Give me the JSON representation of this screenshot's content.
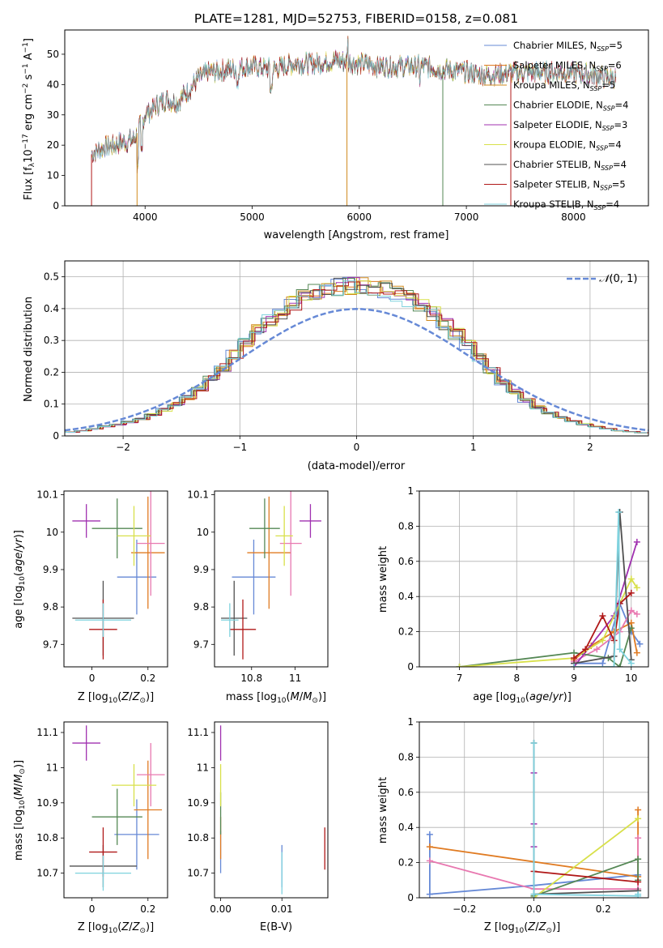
{
  "figure": {
    "title": "PLATE=1281, MJD=52753, FIBERID=0158, z=0.081",
    "series_colors": [
      "#6689d6",
      "#e07b22",
      "#d08a1e",
      "#558855",
      "#a030b0",
      "#d8e04a",
      "#505050",
      "#b01818",
      "#7fd2de"
    ]
  },
  "chart_data": [
    {
      "id": "spectrum",
      "type": "line",
      "xlabel": "wavelength [Angstrom, rest frame]",
      "ylabel": "Flux [f_λ10^-17 erg cm^-2 s^-1 A^-1]",
      "xlim": [
        3250,
        8700
      ],
      "ylim": [
        0,
        58
      ],
      "xticks": [
        4000,
        5000,
        6000,
        7000,
        8000
      ],
      "yticks": [
        0,
        10,
        20,
        30,
        40,
        50
      ],
      "grid": false,
      "legend_position": "upper right",
      "series": [
        {
          "name": "Chabrier MILES, N_SSP=5",
          "color": "#6689d6"
        },
        {
          "name": "Salpeter MILES, N_SSP=6",
          "color": "#e07b22"
        },
        {
          "name": "Kroupa MILES, N_SSP=5",
          "color": "#d08a1e"
        },
        {
          "name": "Chabrier ELODIE, N_SSP=4",
          "color": "#558855"
        },
        {
          "name": "Salpeter ELODIE, N_SSP=3",
          "color": "#a030b0"
        },
        {
          "name": "Kroupa ELODIE, N_SSP=4",
          "color": "#d8e04a"
        },
        {
          "name": "Chabrier STELIB, N_SSP=4",
          "color": "#505050"
        },
        {
          "name": "Salpeter STELIB, N_SSP=5",
          "color": "#b01818"
        },
        {
          "name": "Kroupa STELIB, N_SSP=4",
          "color": "#7fd2de"
        }
      ],
      "continuum": {
        "x": [
          3500,
          3600,
          3700,
          3800,
          3900,
          4000,
          4100,
          4200,
          4300,
          4400,
          4500,
          4600,
          4800,
          5000,
          5200,
          5400,
          5600,
          5800,
          6000,
          6200,
          6400,
          6600,
          6800,
          7000,
          7200,
          7400,
          7600,
          7800,
          8000,
          8200,
          8400
        ],
        "y": [
          17,
          19,
          20,
          21,
          22,
          30,
          33,
          35,
          34,
          38,
          42,
          44,
          45,
          46,
          45,
          47,
          47,
          48,
          47,
          46,
          46,
          46,
          45,
          44,
          43,
          44,
          44,
          44,
          44,
          43,
          42
        ]
      }
    },
    {
      "id": "residuals",
      "type": "bar",
      "xlabel": "(data-model)/error",
      "ylabel": "Normed distribution",
      "xlim": [
        -2.5,
        2.5
      ],
      "ylim": [
        0,
        0.55
      ],
      "xticks": [
        -2,
        -1,
        0,
        1,
        2
      ],
      "xticklabels": [
        "−2",
        "−1",
        "0",
        "1",
        "2"
      ],
      "yticks": [
        0.0,
        0.1,
        0.2,
        0.3,
        0.4,
        0.5
      ],
      "grid": true,
      "legend_position": "upper right",
      "reference_curve": {
        "name": "N(0,1)",
        "color": "#6689d6"
      },
      "bin_width": 0.1,
      "bin_centers": [
        -2.45,
        -2.35,
        -2.25,
        -2.15,
        -2.05,
        -1.95,
        -1.85,
        -1.75,
        -1.65,
        -1.55,
        -1.45,
        -1.35,
        -1.25,
        -1.15,
        -1.05,
        -0.95,
        -0.85,
        -0.75,
        -0.65,
        -0.55,
        -0.45,
        -0.35,
        -0.25,
        -0.15,
        -0.05,
        0.05,
        0.15,
        0.25,
        0.35,
        0.45,
        0.55,
        0.65,
        0.75,
        0.85,
        0.95,
        1.05,
        1.15,
        1.25,
        1.35,
        1.45,
        1.55,
        1.65,
        1.75,
        1.85,
        1.95,
        2.05,
        2.15,
        2.25,
        2.35,
        2.45
      ],
      "histogram": [
        0.012,
        0.016,
        0.022,
        0.03,
        0.036,
        0.044,
        0.054,
        0.066,
        0.082,
        0.1,
        0.12,
        0.148,
        0.18,
        0.215,
        0.255,
        0.295,
        0.33,
        0.36,
        0.39,
        0.415,
        0.44,
        0.455,
        0.462,
        0.468,
        0.47,
        0.47,
        0.466,
        0.46,
        0.448,
        0.432,
        0.41,
        0.385,
        0.355,
        0.32,
        0.285,
        0.245,
        0.205,
        0.17,
        0.14,
        0.112,
        0.09,
        0.072,
        0.058,
        0.046,
        0.037,
        0.029,
        0.022,
        0.017,
        0.013,
        0.01
      ],
      "series_offsets": [
        -0.02,
        0.01,
        0.0,
        -0.015,
        0.025,
        0.02,
        0.005,
        0.03,
        -0.01
      ]
    },
    {
      "id": "age-vs-Z",
      "type": "scatter",
      "xlabel": "Z [log10(Z/Z⊙)]",
      "ylabel": "age [log10(age/yr)]",
      "xlim": [
        -0.1,
        0.27
      ],
      "ylim": [
        9.64,
        10.11
      ],
      "xticks": [
        0.0,
        0.2
      ],
      "yticks": [
        9.7,
        9.8,
        9.9,
        10.0,
        10.1
      ],
      "points": [
        {
          "x": 0.16,
          "y": 9.88,
          "xerr": 0.07,
          "yerr": 0.1,
          "color": "#6689d6"
        },
        {
          "x": 0.2,
          "y": 9.945,
          "xerr": 0.06,
          "yerr": 0.15,
          "color": "#e07b22"
        },
        {
          "x": 0.21,
          "y": 9.97,
          "xerr": 0.05,
          "yerr": 0.14,
          "color": "#e878b0"
        },
        {
          "x": 0.09,
          "y": 10.01,
          "xerr": 0.09,
          "yerr": 0.08,
          "color": "#558855"
        },
        {
          "x": -0.02,
          "y": 10.03,
          "xerr": 0.05,
          "yerr": 0.045,
          "color": "#a030b0"
        },
        {
          "x": 0.15,
          "y": 9.99,
          "xerr": 0.06,
          "yerr": 0.08,
          "color": "#d8e04a"
        },
        {
          "x": 0.04,
          "y": 9.77,
          "xerr": 0.11,
          "yerr": 0.1,
          "color": "#505050"
        },
        {
          "x": 0.04,
          "y": 9.74,
          "xerr": 0.05,
          "yerr": 0.08,
          "color": "#b01818"
        },
        {
          "x": 0.04,
          "y": 9.765,
          "xerr": 0.1,
          "yerr": 0.045,
          "color": "#7fd2de"
        }
      ]
    },
    {
      "id": "age-vs-mass",
      "type": "scatter",
      "xlabel": "mass [log10(M/M⊙)]",
      "ylabel": "",
      "xlim": [
        10.63,
        11.15
      ],
      "ylim": [
        9.64,
        10.11
      ],
      "xticks": [
        10.8,
        11.0
      ],
      "yticks": [
        9.7,
        9.8,
        9.9,
        10.0,
        10.1
      ],
      "points": [
        {
          "x": 10.81,
          "y": 9.88,
          "xerr": 0.1,
          "yerr": 0.1,
          "color": "#6689d6"
        },
        {
          "x": 10.88,
          "y": 9.945,
          "xerr": 0.1,
          "yerr": 0.15,
          "color": "#e07b22"
        },
        {
          "x": 10.98,
          "y": 9.97,
          "xerr": 0.05,
          "yerr": 0.14,
          "color": "#e878b0"
        },
        {
          "x": 10.86,
          "y": 10.01,
          "xerr": 0.07,
          "yerr": 0.08,
          "color": "#558855"
        },
        {
          "x": 11.07,
          "y": 10.03,
          "xerr": 0.05,
          "yerr": 0.045,
          "color": "#a030b0"
        },
        {
          "x": 10.95,
          "y": 9.99,
          "xerr": 0.04,
          "yerr": 0.08,
          "color": "#d8e04a"
        },
        {
          "x": 10.72,
          "y": 9.77,
          "xerr": 0.06,
          "yerr": 0.1,
          "color": "#505050"
        },
        {
          "x": 10.76,
          "y": 9.74,
          "xerr": 0.06,
          "yerr": 0.08,
          "color": "#b01818"
        },
        {
          "x": 10.7,
          "y": 9.765,
          "xerr": 0.04,
          "yerr": 0.045,
          "color": "#7fd2de"
        }
      ]
    },
    {
      "id": "weight-vs-age",
      "type": "line",
      "xlabel": "age [log10(age/yr)]",
      "ylabel": "mass weight",
      "xlim": [
        6.3,
        10.3
      ],
      "ylim": [
        0,
        1
      ],
      "xticks": [
        7,
        8,
        9,
        10
      ],
      "yticks": [
        0.0,
        0.2,
        0.4,
        0.6,
        0.8,
        1.0
      ],
      "grid": true,
      "series": [
        {
          "color": "#6689d6",
          "x": [
            9.0,
            9.5,
            9.8,
            10.0,
            10.15
          ],
          "y": [
            0.02,
            0.02,
            0.36,
            0.2,
            0.13
          ]
        },
        {
          "color": "#e07b22",
          "x": [
            9.0,
            9.3,
            9.7,
            10.0,
            10.1
          ],
          "y": [
            0.04,
            0.12,
            0.2,
            0.25,
            0.08
          ]
        },
        {
          "color": "#e878b0",
          "x": [
            9.0,
            9.4,
            9.8,
            10.0,
            10.1
          ],
          "y": [
            0.03,
            0.1,
            0.2,
            0.32,
            0.3
          ]
        },
        {
          "color": "#558855",
          "x": [
            7.0,
            9.0,
            9.6,
            9.8,
            10.0
          ],
          "y": [
            0.0,
            0.08,
            0.05,
            0.0,
            0.22
          ]
        },
        {
          "color": "#a030b0",
          "x": [
            9.0,
            9.7,
            10.1
          ],
          "y": [
            0.0,
            0.29,
            0.71
          ]
        },
        {
          "color": "#d8e04a",
          "x": [
            7.0,
            9.0,
            9.5,
            10.0,
            10.1
          ],
          "y": [
            0.0,
            0.05,
            0.15,
            0.5,
            0.45
          ]
        },
        {
          "color": "#505050",
          "x": [
            9.0,
            9.7,
            9.8,
            10.0
          ],
          "y": [
            0.02,
            0.06,
            0.88,
            0.04
          ]
        },
        {
          "color": "#b01818",
          "x": [
            9.0,
            9.2,
            9.5,
            9.7,
            9.8,
            10.0
          ],
          "y": [
            0.05,
            0.1,
            0.29,
            0.15,
            0.36,
            0.42
          ]
        },
        {
          "color": "#7fd2de",
          "x": [
            9.0,
            9.7,
            9.78,
            9.8,
            10.0
          ],
          "y": [
            0.0,
            0.0,
            0.88,
            0.1,
            0.02
          ]
        }
      ]
    },
    {
      "id": "mass-vs-Z",
      "type": "scatter",
      "xlabel": "Z [log10(Z/Z⊙)]",
      "ylabel": "mass [log10(M/M⊙)]",
      "xlim": [
        -0.1,
        0.27
      ],
      "ylim": [
        10.63,
        11.13
      ],
      "xticks": [
        0.0,
        0.2
      ],
      "yticks": [
        10.7,
        10.8,
        10.9,
        11.0,
        11.1
      ],
      "points": [
        {
          "x": 0.16,
          "y": 10.81,
          "xerr": 0.08,
          "yerr": 0.1,
          "color": "#6689d6"
        },
        {
          "x": 0.2,
          "y": 10.88,
          "xerr": 0.05,
          "yerr": 0.14,
          "color": "#e07b22"
        },
        {
          "x": 0.21,
          "y": 10.98,
          "xerr": 0.05,
          "yerr": 0.09,
          "color": "#e878b0"
        },
        {
          "x": 0.09,
          "y": 10.86,
          "xerr": 0.09,
          "yerr": 0.08,
          "color": "#558855"
        },
        {
          "x": -0.02,
          "y": 11.07,
          "xerr": 0.05,
          "yerr": 0.05,
          "color": "#a030b0"
        },
        {
          "x": 0.15,
          "y": 10.95,
          "xerr": 0.08,
          "yerr": 0.06,
          "color": "#d8e04a"
        },
        {
          "x": 0.04,
          "y": 10.72,
          "xerr": 0.12,
          "yerr": 0.06,
          "color": "#505050"
        },
        {
          "x": 0.04,
          "y": 10.76,
          "xerr": 0.05,
          "yerr": 0.07,
          "color": "#b01818"
        },
        {
          "x": 0.04,
          "y": 10.7,
          "xerr": 0.1,
          "yerr": 0.05,
          "color": "#7fd2de"
        }
      ]
    },
    {
      "id": "mass-vs-ebv",
      "type": "scatter",
      "xlabel": "E(B-V)",
      "ylabel": "",
      "xlim": [
        -0.001,
        0.0175
      ],
      "ylim": [
        10.63,
        11.13
      ],
      "xticks": [
        0.0,
        0.01
      ],
      "xticklabels": [
        "0.00",
        "0.01"
      ],
      "yticks": [
        10.7,
        10.8,
        10.9,
        11.0,
        11.1
      ],
      "points": [
        {
          "x": 0.0,
          "y": 10.76,
          "xerr": 0,
          "yerr": 0.06,
          "color": "#6689d6"
        },
        {
          "x": 0.0,
          "y": 10.8,
          "xerr": 0,
          "yerr": 0.06,
          "color": "#e07b22"
        },
        {
          "x": 0.0,
          "y": 10.87,
          "xerr": 0,
          "yerr": 0.06,
          "color": "#558855"
        },
        {
          "x": 0.0,
          "y": 11.07,
          "xerr": 0,
          "yerr": 0.05,
          "color": "#a030b0"
        },
        {
          "x": 0.0,
          "y": 10.95,
          "xerr": 0,
          "yerr": 0.06,
          "color": "#d8e04a"
        },
        {
          "x": 0.01,
          "y": 10.72,
          "xerr": 0,
          "yerr": 0.06,
          "color": "#6689d6"
        },
        {
          "x": 0.01,
          "y": 10.7,
          "xerr": 0,
          "yerr": 0.06,
          "color": "#7fd2de"
        },
        {
          "x": 0.017,
          "y": 10.77,
          "xerr": 0,
          "yerr": 0.06,
          "color": "#b01818"
        }
      ]
    },
    {
      "id": "weight-vs-Z",
      "type": "line",
      "xlabel": "Z [log10(Z/Z⊙)]",
      "ylabel": "mass weight",
      "xlim": [
        -0.33,
        0.33
      ],
      "ylim": [
        0,
        1
      ],
      "xticks": [
        -0.2,
        0.0,
        0.2
      ],
      "xticklabels": [
        "−0.2",
        "0.0",
        "0.2"
      ],
      "yticks": [
        0.0,
        0.2,
        0.4,
        0.6,
        0.8,
        1.0
      ],
      "grid": true,
      "series": [
        {
          "color": "#6689d6",
          "x": [
            -0.3,
            -0.3,
            0.0,
            0.3
          ],
          "y": [
            0.36,
            0.02,
            0.07,
            0.13
          ]
        },
        {
          "color": "#e07b22",
          "x": [
            -0.3,
            0.3,
            0.3
          ],
          "y": [
            0.29,
            0.12,
            0.5
          ]
        },
        {
          "color": "#e878b0",
          "x": [
            -0.3,
            0.0,
            0.3,
            0.3
          ],
          "y": [
            0.21,
            0.05,
            0.05,
            0.34
          ]
        },
        {
          "color": "#558855",
          "x": [
            0.0,
            0.3,
            0.3
          ],
          "y": [
            0.01,
            0.22,
            0.1
          ]
        },
        {
          "color": "#a030b0",
          "x": [
            0.0,
            0.0,
            0.0
          ],
          "y": [
            0.71,
            0.42,
            0.29
          ]
        },
        {
          "color": "#d8e04a",
          "x": [
            0.0,
            0.3
          ],
          "y": [
            0.0,
            0.45
          ]
        },
        {
          "color": "#505050",
          "x": [
            0.0,
            0.0,
            0.3
          ],
          "y": [
            0.88,
            0.02,
            0.04
          ]
        },
        {
          "color": "#b01818",
          "x": [
            0.0,
            0.3
          ],
          "y": [
            0.15,
            0.09
          ]
        },
        {
          "color": "#7fd2de",
          "x": [
            0.0,
            0.0,
            0.3,
            0.3
          ],
          "y": [
            0.88,
            0.02,
            0.01,
            0.02
          ]
        }
      ]
    }
  ]
}
